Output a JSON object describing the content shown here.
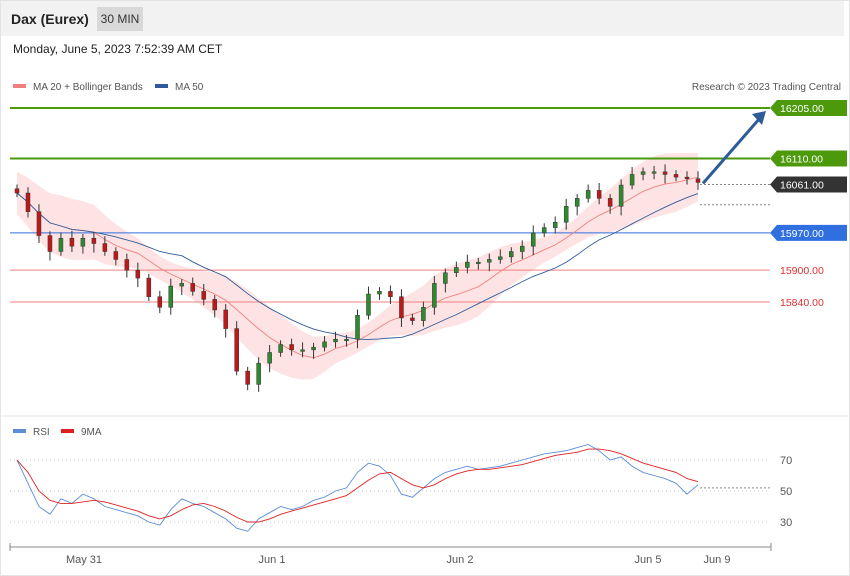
{
  "header": {
    "title": "Dax (Eurex)",
    "timeframe": "30 MIN"
  },
  "timestamp": "Monday, June 5, 2023 7:52:39 AM CET",
  "main_legend": [
    {
      "label": "MA 20 + Bollinger Bands",
      "color": "#f08080"
    },
    {
      "label": "MA 50",
      "color": "#2e5c9a"
    }
  ],
  "copyright": "Research © 2023 Trading Central",
  "rsi_legend": [
    {
      "label": "RSI",
      "color": "#5b8dd9"
    },
    {
      "label": "9MA",
      "color": "#e02020"
    }
  ],
  "colors": {
    "green": "#4c9a0c",
    "blue": "#2f6fe0",
    "red": "#f08080",
    "dark": "#333333",
    "arrow": "#2e5c9a"
  },
  "chart_data": [
    {
      "type": "candlestick",
      "levels": [
        {
          "value": 16205.0,
          "label": "16205.00",
          "kind": "resistance"
        },
        {
          "value": 16110.0,
          "label": "16110.00",
          "kind": "resistance"
        },
        {
          "value": 16061.0,
          "label": "16061.00",
          "kind": "last"
        },
        {
          "value": 15970.0,
          "label": "15970.00",
          "kind": "pivot"
        },
        {
          "value": 15900.0,
          "label": "15900.00",
          "kind": "support"
        },
        {
          "value": 15840.0,
          "label": "15840.00",
          "kind": "support"
        }
      ],
      "x_ticks": [
        "May 31",
        "Jun 1",
        "Jun 2",
        "Jun 5",
        "Jun 9"
      ],
      "close_path": [
        16045,
        16010,
        15965,
        15935,
        15960,
        15945,
        15960,
        15950,
        15935,
        15920,
        15900,
        15885,
        15850,
        15830,
        15870,
        15875,
        15860,
        15845,
        15825,
        15790,
        15710,
        15685,
        15725,
        15745,
        15760,
        15750,
        15750,
        15755,
        15765,
        15770,
        15770,
        15815,
        15855,
        15860,
        15850,
        15810,
        15805,
        15830,
        15875,
        15895,
        15905,
        15915,
        15915,
        15920,
        15925,
        15935,
        15945,
        15970,
        15980,
        15990,
        16020,
        16035,
        16050,
        16035,
        16020,
        16060,
        16080,
        16085,
        16085,
        16080,
        16075,
        16072,
        16065
      ],
      "projection_target": 16205.0
    },
    {
      "type": "line",
      "name": "RSI",
      "y_ticks": [
        70,
        50,
        30
      ],
      "series": [
        {
          "name": "RSI",
          "values": [
            70,
            55,
            40,
            35,
            45,
            42,
            48,
            45,
            40,
            38,
            36,
            34,
            30,
            28,
            38,
            45,
            42,
            40,
            36,
            32,
            26,
            24,
            32,
            36,
            40,
            38,
            40,
            44,
            46,
            50,
            52,
            62,
            68,
            66,
            60,
            48,
            46,
            52,
            58,
            62,
            64,
            66,
            64,
            65,
            66,
            68,
            70,
            72,
            74,
            75,
            76,
            78,
            80,
            76,
            70,
            72,
            66,
            62,
            60,
            58,
            55,
            48,
            54
          ]
        },
        {
          "name": "9MA",
          "values": [
            70,
            62,
            50,
            44,
            42,
            42,
            43,
            44,
            43,
            41,
            39,
            37,
            34,
            32,
            34,
            38,
            41,
            42,
            40,
            37,
            33,
            30,
            30,
            32,
            35,
            37,
            39,
            41,
            43,
            45,
            47,
            52,
            57,
            61,
            62,
            58,
            54,
            52,
            54,
            58,
            61,
            63,
            64,
            64,
            65,
            66,
            67,
            69,
            71,
            73,
            74,
            75,
            77,
            77,
            76,
            74,
            71,
            68,
            66,
            64,
            62,
            58,
            56
          ]
        }
      ]
    }
  ]
}
